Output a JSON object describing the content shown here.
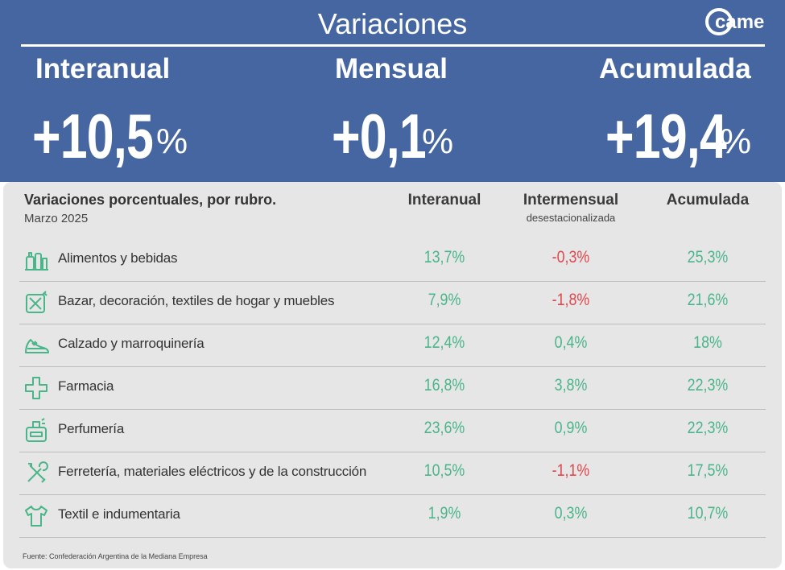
{
  "header": {
    "title": "Variaciones",
    "logo_text": "came",
    "stats": [
      {
        "label": "Interanual",
        "value": "+10,5",
        "unit": "%"
      },
      {
        "label": "Mensual",
        "value": "+0,1",
        "unit": "%"
      },
      {
        "label": "Acumulada",
        "value": "+19,4",
        "unit": "%"
      }
    ]
  },
  "table": {
    "title": "Variaciones porcentuales, por rubro.",
    "subtitle": "Marzo 2025",
    "columns": [
      {
        "label": "Interanual",
        "sublabel": ""
      },
      {
        "label": "Intermensual",
        "sublabel": "desestacionalizada"
      },
      {
        "label": "Acumulada",
        "sublabel": ""
      }
    ],
    "source": "Fuente: Confederación Argentina de la Mediana Empresa"
  },
  "colors": {
    "header_bg": "#4566a0",
    "positive": "#4bb58a",
    "negative": "#e0484d",
    "panel_bg": "#e6e6e6"
  },
  "chart_data": {
    "type": "table",
    "title": "Variaciones porcentuales, por rubro.",
    "subtitle": "Marzo 2025",
    "columns": [
      "Interanual",
      "Intermensual desestacionalizada",
      "Acumulada"
    ],
    "rows": [
      {
        "label": "Alimentos y bebidas",
        "icon": "grocery-icon",
        "values": [
          "13,7%",
          "-0,3%",
          "25,3%"
        ]
      },
      {
        "label": "Bazar, decoración, textiles de hogar y muebles",
        "icon": "home-goods-icon",
        "values": [
          "7,9%",
          "-1,8%",
          "21,6%"
        ]
      },
      {
        "label": "Calzado y marroquinería",
        "icon": "shoe-icon",
        "values": [
          "12,4%",
          "0,4%",
          "18%"
        ]
      },
      {
        "label": "Farmacia",
        "icon": "pharmacy-cross-icon",
        "values": [
          "16,8%",
          "3,8%",
          "22,3%"
        ]
      },
      {
        "label": "Perfumería",
        "icon": "perfume-icon",
        "values": [
          "23,6%",
          "0,9%",
          "22,3%"
        ]
      },
      {
        "label": "Ferretería, materiales eléctricos y de la construcción",
        "icon": "tools-icon",
        "values": [
          "10,5%",
          "-1,1%",
          "17,5%"
        ]
      },
      {
        "label": "Textil e indumentaria",
        "icon": "tshirt-icon",
        "values": [
          "1,9%",
          "0,3%",
          "10,7%"
        ]
      }
    ]
  }
}
